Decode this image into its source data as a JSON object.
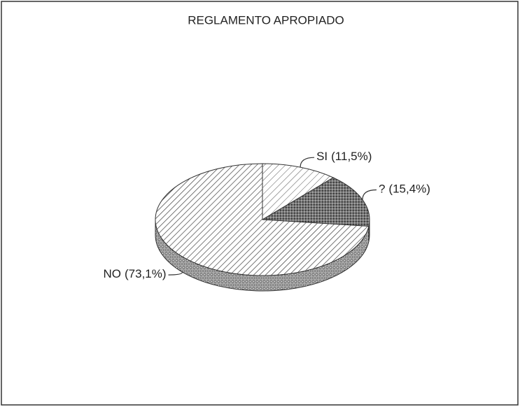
{
  "chart_data": {
    "type": "pie",
    "title": "REGLAMENTO APROPIADO",
    "categories": [
      "SI",
      "?",
      "NO"
    ],
    "values": [
      11.5,
      15.4,
      73.1
    ],
    "value_labels": [
      "(11,5%)",
      "(15,4%)",
      "(73,1%)"
    ]
  }
}
